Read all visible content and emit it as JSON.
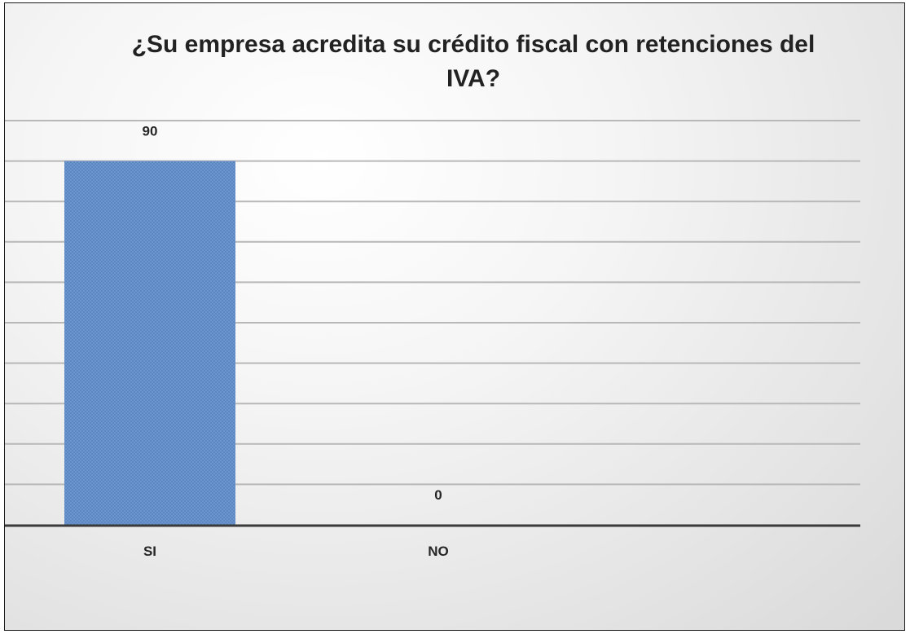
{
  "chart_data": {
    "type": "bar",
    "title": "¿Su empresa acredita su crédito fiscal con retenciones del IVA?",
    "categories": [
      "SI",
      "NO"
    ],
    "values": [
      90,
      0
    ],
    "data_labels": [
      "90",
      "0"
    ],
    "ylim": [
      0,
      100
    ],
    "y_gridline_step": 10,
    "grid": true,
    "legend": "none",
    "bar_color": "#5b86c4"
  }
}
